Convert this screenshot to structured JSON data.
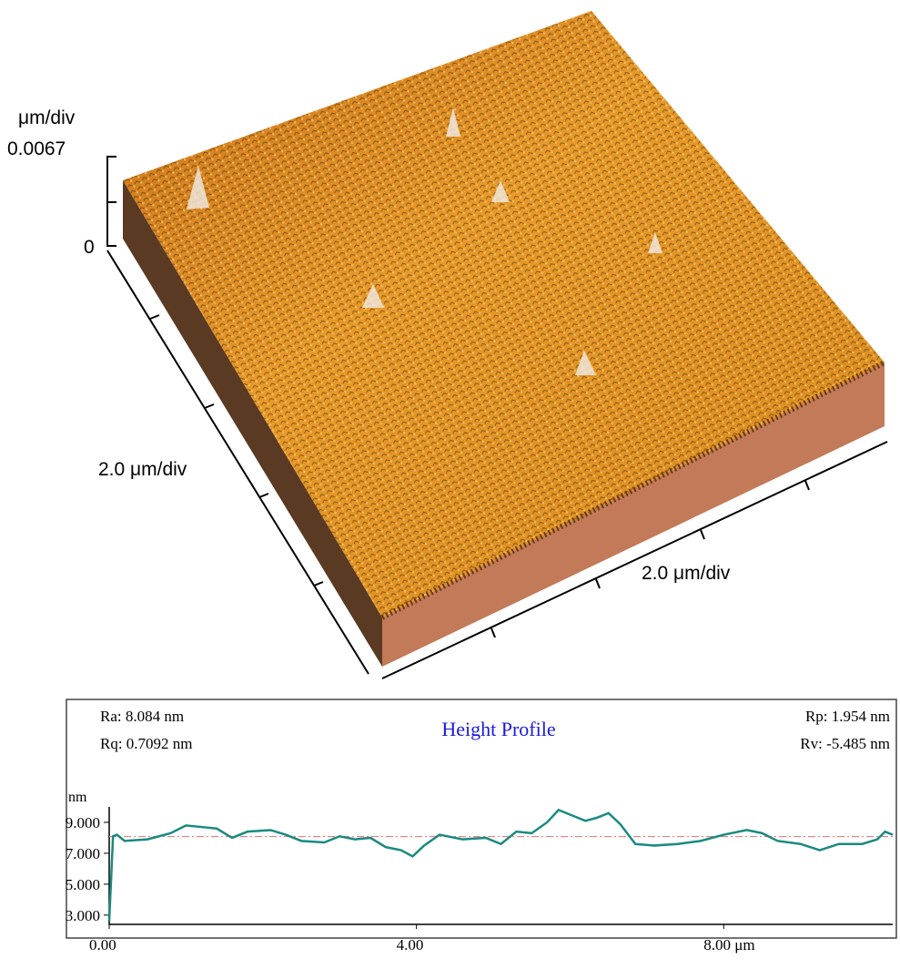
{
  "surface": {
    "z_unit": "μm/div",
    "zticks": [
      0,
      0.0067
    ],
    "x_scale": "2.0 μm/div",
    "y_scale": "2.0 μm/div"
  },
  "chart_data": {
    "type": "line",
    "title": "Height Profile",
    "y_unit": "nm",
    "annotations": {
      "ra": "Ra: 8.084 nm",
      "rq": "Rq: 0.7092 nm",
      "rp": "Rp: 1.954 nm",
      "rv": "Rv: -5.485 nm"
    },
    "x": [
      0,
      0.05,
      0.1,
      0.2,
      0.5,
      0.8,
      1.0,
      1.2,
      1.4,
      1.6,
      1.8,
      2.1,
      2.3,
      2.5,
      2.8,
      3.0,
      3.2,
      3.4,
      3.6,
      3.8,
      3.95,
      4.1,
      4.3,
      4.6,
      4.9,
      5.1,
      5.3,
      5.5,
      5.7,
      5.85,
      6.0,
      6.2,
      6.35,
      6.5,
      6.65,
      6.85,
      7.1,
      7.4,
      7.7,
      8.0,
      8.3,
      8.5,
      8.7,
      9.0,
      9.25,
      9.5,
      9.8,
      10.0,
      10.1,
      10.2
    ],
    "series": [
      {
        "color": "#1a8a80",
        "values": [
          2.6,
          8.1,
          8.2,
          7.8,
          7.9,
          8.3,
          8.8,
          8.7,
          8.6,
          8.0,
          8.4,
          8.5,
          8.2,
          7.8,
          7.7,
          8.1,
          7.9,
          8.0,
          7.4,
          7.2,
          6.8,
          7.5,
          8.2,
          7.9,
          8.0,
          7.6,
          8.4,
          8.3,
          9.0,
          9.8,
          9.5,
          9.1,
          9.3,
          9.6,
          8.9,
          7.6,
          7.5,
          7.6,
          7.8,
          8.2,
          8.5,
          8.3,
          7.8,
          7.6,
          7.2,
          7.6,
          7.6,
          7.9,
          8.4,
          8.2
        ]
      }
    ],
    "reference_line": {
      "value": 8.08,
      "color": "#e07070"
    },
    "xlim": [
      0,
      10.2
    ],
    "ylim": [
      2.4,
      10.0
    ],
    "xticks": [
      {
        "value": 0,
        "label": "0.00"
      },
      {
        "value": 4,
        "label": "4.00"
      },
      {
        "value": 8,
        "label": "8.00 μm"
      }
    ],
    "yticks": [
      {
        "value": 3,
        "label": "3.000"
      },
      {
        "value": 5,
        "label": "5.000"
      },
      {
        "value": 7,
        "label": "7.000"
      },
      {
        "value": 9,
        "label": "9.000"
      }
    ]
  }
}
